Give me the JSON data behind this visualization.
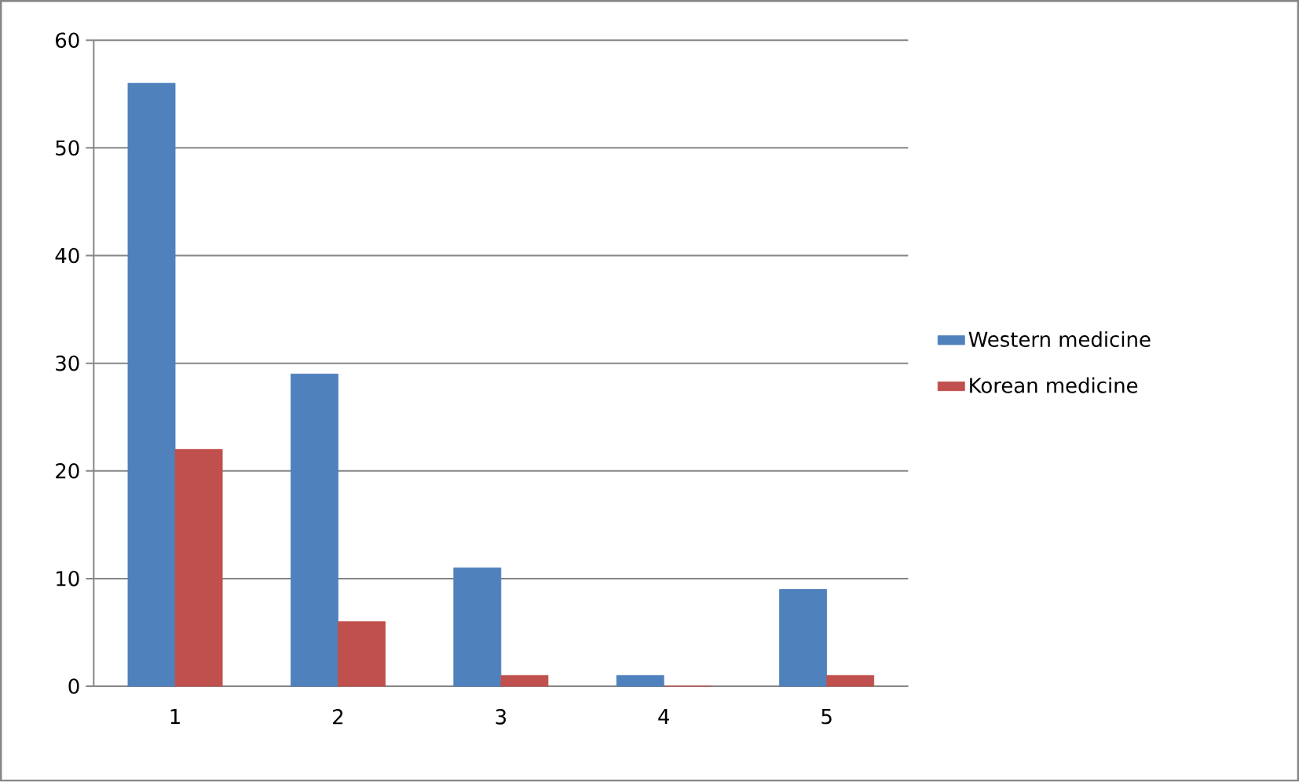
{
  "chart_data": {
    "type": "bar",
    "categories": [
      "1",
      "2",
      "3",
      "4",
      "5"
    ],
    "series": [
      {
        "name": "Western medicine",
        "color": "#4f81bd",
        "values": [
          56,
          29,
          11,
          1,
          9
        ]
      },
      {
        "name": "Korean medicine",
        "color": "#c0504d",
        "values": [
          22,
          6,
          1,
          0,
          1
        ]
      }
    ],
    "ylim": [
      0,
      60
    ],
    "yticks": [
      0,
      10,
      20,
      30,
      40,
      50,
      60
    ],
    "grid": "y",
    "legend": "right"
  }
}
